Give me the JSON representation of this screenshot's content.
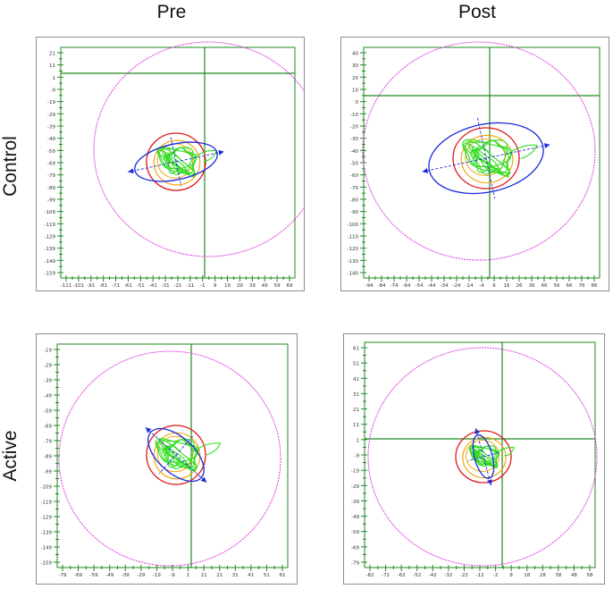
{
  "columns": [
    {
      "label": "Pre"
    },
    {
      "label": "Post"
    }
  ],
  "rows": [
    {
      "label": "Control"
    },
    {
      "label": "Active"
    }
  ],
  "colors": {
    "border": "#8c8c8c",
    "axis": "#1f8a1f",
    "outer_circle": "#e23be2",
    "circle_red": "#e01818",
    "circle_orange": "#f2a000",
    "ellipse": "#1b2bd8",
    "trace": "#33dd22"
  },
  "panels": [
    {
      "id": "control-pre",
      "x_ticks": [
        "-111",
        "-101",
        "-91",
        "-81",
        "-71",
        "-61",
        "-51",
        "-41",
        "-31",
        "-21",
        "-11",
        "-1",
        "9",
        "19",
        "29",
        "39",
        "49",
        "59",
        "69"
      ],
      "y_ticks": [
        "21",
        "11",
        "1",
        "-9",
        "-19",
        "-29",
        "-39",
        "-49",
        "-59",
        "-69",
        "-79",
        "-89",
        "-99",
        "-109",
        "-119",
        "-129",
        "-139",
        "-149",
        "-159"
      ]
    },
    {
      "id": "control-post",
      "x_ticks": [
        "-94",
        "-84",
        "-74",
        "-64",
        "-54",
        "-44",
        "-34",
        "-24",
        "-14",
        "-4",
        "6",
        "16",
        "26",
        "36",
        "46",
        "56",
        "66",
        "76",
        "86"
      ],
      "y_ticks": [
        "40",
        "30",
        "20",
        "10",
        "0",
        "-10",
        "-20",
        "-30",
        "-40",
        "-50",
        "-60",
        "-70",
        "-80",
        "-90",
        "-100",
        "-110",
        "-120",
        "-130",
        "-140"
      ]
    },
    {
      "id": "active-pre",
      "x_ticks": [
        "-79",
        "-69",
        "-59",
        "-49",
        "-39",
        "-29",
        "-19",
        "-9",
        "1",
        "11",
        "21",
        "31",
        "41",
        "51",
        "61"
      ],
      "y_ticks": [
        "-19",
        "-29",
        "-39",
        "-49",
        "-59",
        "-69",
        "-79",
        "-89",
        "-99",
        "-109",
        "-119",
        "-129",
        "-139",
        "-149",
        "-159"
      ]
    },
    {
      "id": "active-post",
      "x_ticks": [
        "-82",
        "-72",
        "-62",
        "-52",
        "-42",
        "-32",
        "-22",
        "-12",
        "-2",
        "8",
        "18",
        "28",
        "38",
        "48",
        "58"
      ],
      "y_ticks": [
        "61",
        "51",
        "41",
        "31",
        "21",
        "11",
        "1",
        "-9",
        "-19",
        "-29",
        "-39",
        "-49",
        "-59",
        "-69",
        "-79"
      ]
    }
  ]
}
